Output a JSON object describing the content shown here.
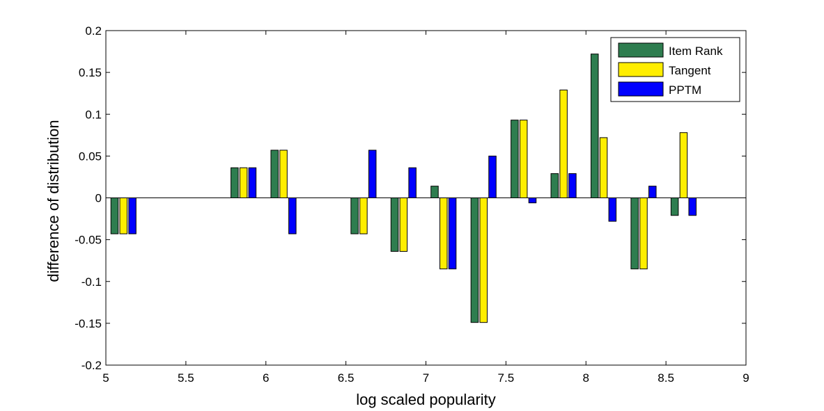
{
  "chart_data": {
    "type": "bar",
    "title": "",
    "xlabel": "log scaled popularity",
    "ylabel": "difference of distribution",
    "xlim": [
      5,
      9
    ],
    "ylim": [
      -0.2,
      0.2
    ],
    "xticks": [
      "5",
      "5.5",
      "6",
      "6.5",
      "7",
      "7.5",
      "8",
      "8.5",
      "9"
    ],
    "yticks": [
      "-0.2",
      "-0.15",
      "-0.1",
      "-0.05",
      "0",
      "0.05",
      "0.1",
      "0.15",
      "0.2"
    ],
    "x": [
      5.11,
      5.86,
      6.11,
      6.61,
      6.86,
      7.11,
      7.36,
      7.61,
      7.86,
      8.11,
      8.36,
      8.61
    ],
    "series": [
      {
        "name": "Item Rank",
        "color": "#2e7d4f",
        "values": [
          -0.043,
          0.036,
          0.057,
          -0.043,
          -0.064,
          0.014,
          -0.149,
          0.093,
          0.029,
          0.172,
          -0.085,
          -0.021
        ]
      },
      {
        "name": "Tangent",
        "color": "#ffee00",
        "values": [
          -0.043,
          0.036,
          0.057,
          -0.043,
          -0.064,
          -0.085,
          -0.149,
          0.093,
          0.129,
          0.072,
          -0.085,
          0.078
        ]
      },
      {
        "name": "PPTM",
        "color": "#0000ff",
        "values": [
          -0.043,
          0.036,
          -0.043,
          0.057,
          0.036,
          -0.085,
          0.05,
          -0.006,
          0.029,
          -0.028,
          0.014,
          -0.021
        ]
      }
    ],
    "grid": false,
    "legend_position": "top-right"
  }
}
